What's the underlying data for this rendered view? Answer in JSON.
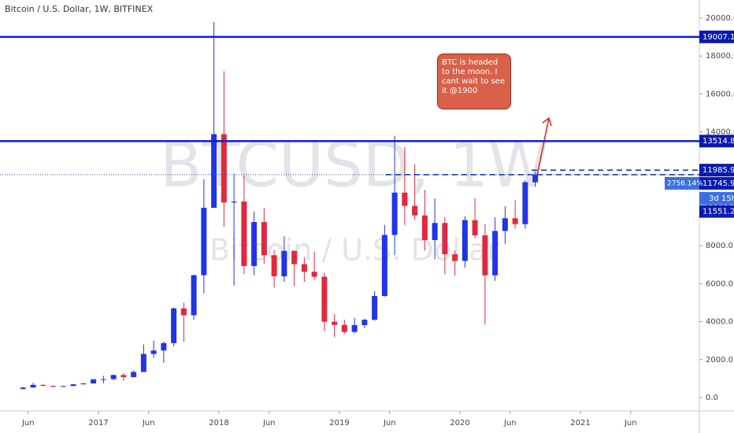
{
  "chart_data": {
    "type": "candlestick",
    "title": "Bitcoin / U.S. Dollar, 1W, BITFINEX",
    "watermark": "BTCUSD, 1W",
    "watermark_sub": "Bitcoin / U.S. Dollar",
    "annotation": "BTC is headed to the moon. I cant wait to see it @1900",
    "up_color": "#2135e8",
    "down_color": "#e2283e",
    "x": [
      "2016-05",
      "2016-06",
      "2016-07",
      "2016-08",
      "2016-09",
      "2016-10",
      "2016-11",
      "2016-12",
      "2017-01",
      "2017-02",
      "2017-03",
      "2017-04",
      "2017-05",
      "2017-06",
      "2017-07",
      "2017-08",
      "2017-09",
      "2017-10",
      "2017-11",
      "2017-12",
      "2018-01",
      "2018-02",
      "2018-03",
      "2018-04",
      "2018-05",
      "2018-06",
      "2018-07",
      "2018-08",
      "2018-09",
      "2018-10",
      "2018-11",
      "2018-12",
      "2019-01",
      "2019-02",
      "2019-03",
      "2019-04",
      "2019-05",
      "2019-06",
      "2019-07",
      "2019-08",
      "2019-09",
      "2019-10",
      "2019-11",
      "2019-12",
      "2020-01",
      "2020-02",
      "2020-03",
      "2020-04",
      "2020-05",
      "2020-06",
      "2020-07",
      "2020-08"
    ],
    "open": [
      450,
      530,
      670,
      620,
      575,
      610,
      700,
      745,
      965,
      970,
      1190,
      1080,
      1350,
      2300,
      2480,
      2870,
      4700,
      4340,
      6450,
      10000,
      13880,
      10280,
      10330,
      6930,
      9250,
      7500,
      6390,
      7730,
      7030,
      6630,
      6370,
      4000,
      3830,
      3460,
      3820,
      4100,
      5350,
      8570,
      10800,
      10100,
      9600,
      8300,
      9200,
      7550,
      7200,
      9350,
      8550,
      6440,
      8780,
      9450,
      9140,
      11350
    ],
    "high": [
      550,
      780,
      700,
      630,
      630,
      720,
      760,
      980,
      1150,
      1200,
      1300,
      1420,
      2800,
      3000,
      2950,
      4750,
      5000,
      6470,
      11500,
      19800,
      17200,
      11800,
      11700,
      9800,
      9990,
      7780,
      8500,
      7750,
      7400,
      7700,
      6580,
      4400,
      4100,
      4200,
      4150,
      5600,
      9100,
      13800,
      13200,
      12300,
      10950,
      10500,
      9520,
      7750,
      9550,
      10500,
      9150,
      9500,
      10080,
      10400,
      11450,
      11900
    ],
    "low": [
      440,
      520,
      600,
      530,
      590,
      605,
      690,
      740,
      750,
      930,
      890,
      1060,
      1340,
      2100,
      1830,
      2700,
      2950,
      4100,
      5500,
      10000,
      9000,
      5900,
      6500,
      6450,
      7050,
      5800,
      6100,
      5880,
      6100,
      6200,
      3500,
      3200,
      3350,
      3380,
      3670,
      4050,
      5320,
      7500,
      9100,
      9350,
      7750,
      7300,
      6500,
      6430,
      6850,
      8400,
      3850,
      6150,
      8100,
      8900,
      8900,
      11100
    ],
    "close": [
      530,
      670,
      620,
      575,
      610,
      700,
      745,
      965,
      970,
      1190,
      1080,
      1350,
      2300,
      2480,
      2870,
      4700,
      4340,
      6450,
      10000,
      13880,
      10280,
      10330,
      6930,
      9250,
      7500,
      6390,
      7730,
      7030,
      6630,
      6370,
      4000,
      3830,
      3460,
      3820,
      4100,
      5350,
      8570,
      10800,
      10100,
      9600,
      8300,
      9200,
      7550,
      7200,
      9350,
      8550,
      6440,
      8780,
      9450,
      9140,
      11350,
      11745
    ],
    "ylim": [
      -705,
      20950
    ],
    "yticks": [
      {
        "value": 0,
        "label": "0.0"
      },
      {
        "value": 2000,
        "label": "2000.0"
      },
      {
        "value": 4000,
        "label": "4000.0"
      },
      {
        "value": 6000,
        "label": "6000.0"
      },
      {
        "value": 8000,
        "label": "8000.0"
      },
      {
        "value": 10000,
        "label": "10000.0"
      },
      {
        "value": 12000,
        "label": "12000.0"
      },
      {
        "value": 14000,
        "label": "14000.0"
      },
      {
        "value": 16000,
        "label": "16000.0"
      },
      {
        "value": 18000,
        "label": "18000.0"
      },
      {
        "value": 20000,
        "label": "20000.0"
      }
    ],
    "xticks": [
      {
        "value": "2016-06",
        "label": "Jun"
      },
      {
        "value": "2017-01",
        "label": "2017"
      },
      {
        "value": "2017-06",
        "label": "Jun"
      },
      {
        "value": "2018-01",
        "label": "2018"
      },
      {
        "value": "2018-06",
        "label": "Jun"
      },
      {
        "value": "2019-01",
        "label": "2019"
      },
      {
        "value": "2019-06",
        "label": "Jun"
      },
      {
        "value": "2020-01",
        "label": "2020"
      },
      {
        "value": "2020-06",
        "label": "Jun"
      },
      {
        "value": "2021-01",
        "label": "2021"
      },
      {
        "value": "2021-06",
        "label": "Jun"
      }
    ],
    "levels": [
      {
        "value": 19007.1,
        "style": "solid",
        "color": "#0d1fd6"
      },
      {
        "value": 13514.8,
        "style": "solid",
        "color": "#0d1fd6"
      },
      {
        "value": 11985.9,
        "style": "dashed",
        "color": "#0d1fd6"
      },
      {
        "value": 11745.9,
        "style": "dashed",
        "color": "#0d1fd6"
      }
    ],
    "last_change": "2756.14%",
    "countdown": "3d 15h",
    "extra_price": 11551.2
  }
}
